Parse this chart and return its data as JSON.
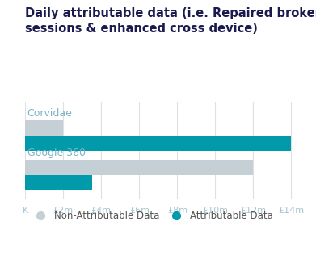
{
  "title": "Daily attributable data (i.e. Repaired broken\nsessions & enhanced cross device)",
  "title_color": "#1a1a4e",
  "title_fontsize": 10.5,
  "groups": [
    "Corvidae",
    "Google 360"
  ],
  "non_attributable": [
    2000000,
    12000000
  ],
  "attributable": [
    14000000,
    3500000
  ],
  "bar_color_non_attr": "#c5cfd6",
  "bar_color_attr": "#009aaa",
  "group_label_color": "#7ab4c8",
  "group_label_fontsize": 9,
  "xtick_labels": [
    "K",
    "£2m",
    "£4m",
    "£6m",
    "£8m",
    "£10m",
    "£12m",
    "£14m"
  ],
  "xtick_values": [
    0,
    2000000,
    4000000,
    6000000,
    8000000,
    10000000,
    12000000,
    14000000
  ],
  "xlim": [
    0,
    14800000
  ],
  "legend_non_attr": "Non-Attributable Data",
  "legend_attr": "Attributable Data",
  "legend_fontsize": 8.5,
  "bar_height": 0.38,
  "background_color": "#ffffff",
  "grid_color": "#e0e0e0",
  "tick_color": "#aac4d0"
}
